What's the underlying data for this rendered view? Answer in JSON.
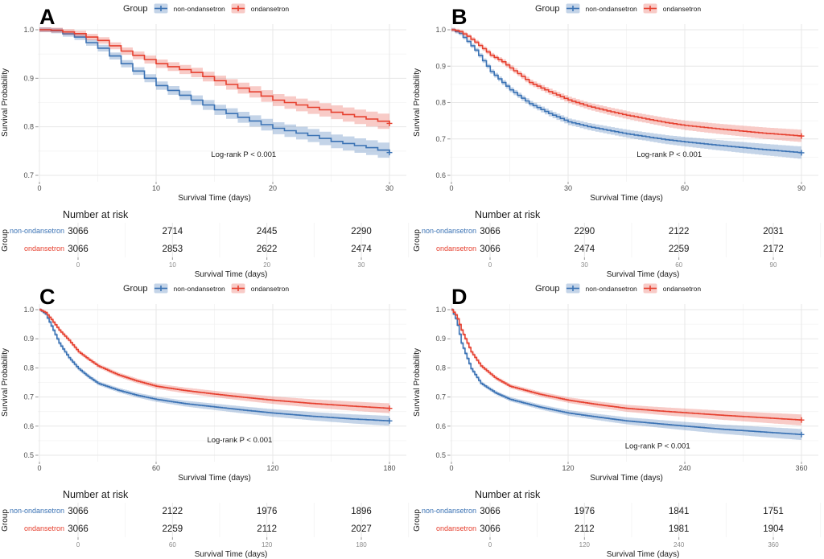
{
  "labels": {
    "y_axis": "Survival Probability",
    "x_axis": "Survival Time (days)",
    "risk_title": "Number at risk",
    "group": "Group"
  },
  "legend": {
    "title": "Group",
    "items": [
      {
        "label": "non-ondansetron"
      },
      {
        "label": "ondansetron"
      }
    ]
  },
  "colors": {
    "series": [
      {
        "name": "non-ondansetron",
        "line": "#3A72B4",
        "band": "rgba(58,114,180,0.30)"
      },
      {
        "name": "ondansetron",
        "line": "#E6402F",
        "band": "rgba(230,64,47,0.27)"
      }
    ],
    "grid_major": "#e7e7e7",
    "grid_minor": "#f3f3f3",
    "axis_text": "#4d4d4d",
    "risk_axis_text": "#8c8c8c",
    "text": "#1a1a1a"
  },
  "chart_data": [
    {
      "type": "km_survival_step",
      "letter": "A",
      "xlabel": "Survival Time (days)",
      "ylabel": "Survival Probability",
      "xlim": [
        0,
        30
      ],
      "xticks": [
        0,
        10,
        20,
        30
      ],
      "ylim": [
        0.7,
        1.0
      ],
      "yticks": [
        "1.0",
        "0.9",
        "0.8",
        "0.7"
      ],
      "annotation": {
        "text": "Log-rank P < 0.001",
        "x": 17.5,
        "y": 0.743
      },
      "band_halfwidth": [
        0.005,
        0.016
      ],
      "series": [
        {
          "name": "non-ondansetron",
          "points": [
            [
              0,
              1.0
            ],
            [
              1,
              0.998
            ],
            [
              3,
              0.985
            ],
            [
              5,
              0.962
            ],
            [
              7,
              0.93
            ],
            [
              10,
              0.885
            ],
            [
              13,
              0.855
            ],
            [
              15,
              0.835
            ],
            [
              18,
              0.812
            ],
            [
              20,
              0.797
            ],
            [
              23,
              0.782
            ],
            [
              25,
              0.77
            ],
            [
              28,
              0.757
            ],
            [
              30,
              0.747
            ]
          ]
        },
        {
          "name": "ondansetron",
          "points": [
            [
              0,
              1.0
            ],
            [
              1,
              0.999
            ],
            [
              3,
              0.992
            ],
            [
              5,
              0.978
            ],
            [
              7,
              0.956
            ],
            [
              10,
              0.93
            ],
            [
              13,
              0.912
            ],
            [
              15,
              0.895
            ],
            [
              18,
              0.872
            ],
            [
              20,
              0.855
            ],
            [
              23,
              0.84
            ],
            [
              25,
              0.83
            ],
            [
              28,
              0.816
            ],
            [
              30,
              0.807
            ]
          ]
        }
      ],
      "risk_rows": [
        {
          "group": "non-ondansetron",
          "values": [
            "3066",
            "2714",
            "2445",
            "2290"
          ]
        },
        {
          "group": "ondansetron",
          "values": [
            "3066",
            "2853",
            "2622",
            "2474"
          ]
        }
      ]
    },
    {
      "type": "km_survival_step",
      "letter": "B",
      "xlabel": "Survival Time (days)",
      "ylabel": "Survival Probability",
      "xlim": [
        0,
        90
      ],
      "xticks": [
        0,
        30,
        60,
        90
      ],
      "ylim": [
        0.6,
        1.0
      ],
      "yticks": [
        "1.0",
        "0.9",
        "0.8",
        "0.7",
        "0.6"
      ],
      "annotation": {
        "text": "Log-rank P < 0.001",
        "x": 56,
        "y": 0.657
      },
      "band_halfwidth": [
        0.005,
        0.017
      ],
      "series": [
        {
          "name": "non-ondansetron",
          "points": [
            [
              0,
              1.0
            ],
            [
              2,
              0.99
            ],
            [
              4,
              0.968
            ],
            [
              6,
              0.944
            ],
            [
              8,
              0.915
            ],
            [
              10,
              0.885
            ],
            [
              13,
              0.855
            ],
            [
              15,
              0.835
            ],
            [
              18,
              0.812
            ],
            [
              20,
              0.797
            ],
            [
              25,
              0.77
            ],
            [
              30,
              0.747
            ],
            [
              35,
              0.734
            ],
            [
              40,
              0.724
            ],
            [
              45,
              0.714
            ],
            [
              50,
              0.706
            ],
            [
              55,
              0.698
            ],
            [
              60,
              0.692
            ],
            [
              70,
              0.681
            ],
            [
              80,
              0.671
            ],
            [
              90,
              0.662
            ]
          ]
        },
        {
          "name": "ondansetron",
          "points": [
            [
              0,
              1.0
            ],
            [
              2,
              0.995
            ],
            [
              4,
              0.982
            ],
            [
              6,
              0.966
            ],
            [
              8,
              0.948
            ],
            [
              10,
              0.93
            ],
            [
              13,
              0.912
            ],
            [
              15,
              0.895
            ],
            [
              18,
              0.872
            ],
            [
              20,
              0.855
            ],
            [
              25,
              0.83
            ],
            [
              30,
              0.807
            ],
            [
              35,
              0.79
            ],
            [
              40,
              0.777
            ],
            [
              45,
              0.765
            ],
            [
              50,
              0.755
            ],
            [
              55,
              0.745
            ],
            [
              60,
              0.737
            ],
            [
              70,
              0.726
            ],
            [
              80,
              0.716
            ],
            [
              90,
              0.708
            ]
          ]
        }
      ],
      "risk_rows": [
        {
          "group": "non-ondansetron",
          "values": [
            "3066",
            "2290",
            "2122",
            "2031"
          ]
        },
        {
          "group": "ondansetron",
          "values": [
            "3066",
            "2474",
            "2259",
            "2172"
          ]
        }
      ]
    },
    {
      "type": "km_survival_step",
      "letter": "C",
      "xlabel": "Survival Time (days)",
      "ylabel": "Survival Probability",
      "xlim": [
        0,
        180
      ],
      "xticks": [
        0,
        60,
        120,
        180
      ],
      "ylim": [
        0.5,
        1.0
      ],
      "yticks": [
        "1.0",
        "0.9",
        "0.8",
        "0.7",
        "0.6",
        "0.5"
      ],
      "annotation": {
        "text": "Log-rank P < 0.001",
        "x": 103,
        "y": 0.553
      },
      "band_halfwidth": [
        0.005,
        0.017
      ],
      "series": [
        {
          "name": "non-ondansetron",
          "points": [
            [
              0,
              1.0
            ],
            [
              3,
              0.985
            ],
            [
              6,
              0.944
            ],
            [
              10,
              0.885
            ],
            [
              15,
              0.835
            ],
            [
              20,
              0.797
            ],
            [
              25,
              0.77
            ],
            [
              30,
              0.747
            ],
            [
              40,
              0.724
            ],
            [
              50,
              0.706
            ],
            [
              60,
              0.692
            ],
            [
              75,
              0.677
            ],
            [
              90,
              0.666
            ],
            [
              105,
              0.655
            ],
            [
              120,
              0.645
            ],
            [
              140,
              0.634
            ],
            [
              160,
              0.625
            ],
            [
              180,
              0.618
            ]
          ]
        },
        {
          "name": "ondansetron",
          "points": [
            [
              0,
              1.0
            ],
            [
              3,
              0.99
            ],
            [
              6,
              0.966
            ],
            [
              10,
              0.93
            ],
            [
              15,
              0.895
            ],
            [
              20,
              0.855
            ],
            [
              25,
              0.83
            ],
            [
              30,
              0.807
            ],
            [
              40,
              0.777
            ],
            [
              50,
              0.755
            ],
            [
              60,
              0.737
            ],
            [
              75,
              0.722
            ],
            [
              90,
              0.71
            ],
            [
              105,
              0.699
            ],
            [
              120,
              0.689
            ],
            [
              140,
              0.678
            ],
            [
              160,
              0.669
            ],
            [
              180,
              0.661
            ]
          ]
        }
      ],
      "risk_rows": [
        {
          "group": "non-ondansetron",
          "values": [
            "3066",
            "2122",
            "1976",
            "1896"
          ]
        },
        {
          "group": "ondansetron",
          "values": [
            "3066",
            "2259",
            "2112",
            "2027"
          ]
        }
      ]
    },
    {
      "type": "km_survival_step",
      "letter": "D",
      "xlabel": "Survival Time (days)",
      "ylabel": "Survival Probability",
      "xlim": [
        0,
        360
      ],
      "xticks": [
        0,
        120,
        240,
        360
      ],
      "ylim": [
        0.5,
        1.0
      ],
      "yticks": [
        "1.0",
        "0.9",
        "0.8",
        "0.7",
        "0.6",
        "0.5"
      ],
      "annotation": {
        "text": "Log-rank P < 0.001",
        "x": 212,
        "y": 0.532
      },
      "band_halfwidth": [
        0.005,
        0.019
      ],
      "series": [
        {
          "name": "non-ondansetron",
          "points": [
            [
              0,
              1.0
            ],
            [
              5,
              0.962
            ],
            [
              10,
              0.885
            ],
            [
              20,
              0.797
            ],
            [
              30,
              0.747
            ],
            [
              45,
              0.714
            ],
            [
              60,
              0.692
            ],
            [
              90,
              0.666
            ],
            [
              120,
              0.645
            ],
            [
              150,
              0.631
            ],
            [
              180,
              0.618
            ],
            [
              210,
              0.609
            ],
            [
              240,
              0.6
            ],
            [
              280,
              0.589
            ],
            [
              320,
              0.58
            ],
            [
              360,
              0.571
            ]
          ]
        },
        {
          "name": "ondansetron",
          "points": [
            [
              0,
              1.0
            ],
            [
              5,
              0.978
            ],
            [
              10,
              0.93
            ],
            [
              20,
              0.855
            ],
            [
              30,
              0.807
            ],
            [
              45,
              0.765
            ],
            [
              60,
              0.737
            ],
            [
              90,
              0.71
            ],
            [
              120,
              0.689
            ],
            [
              150,
              0.674
            ],
            [
              180,
              0.661
            ],
            [
              210,
              0.653
            ],
            [
              240,
              0.646
            ],
            [
              280,
              0.637
            ],
            [
              320,
              0.629
            ],
            [
              360,
              0.621
            ]
          ]
        }
      ],
      "risk_rows": [
        {
          "group": "non-ondansetron",
          "values": [
            "3066",
            "1976",
            "1841",
            "1751"
          ]
        },
        {
          "group": "ondansetron",
          "values": [
            "3066",
            "2112",
            "1981",
            "1904"
          ]
        }
      ]
    }
  ]
}
